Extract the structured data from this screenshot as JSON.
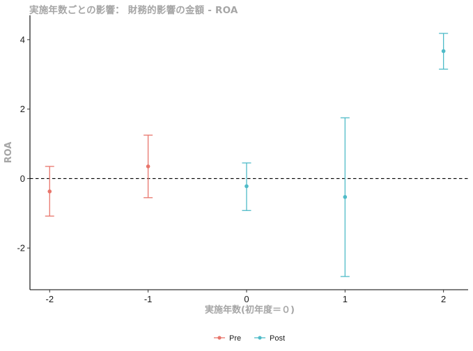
{
  "chart_data": {
    "type": "scatter",
    "title": "実施年数ごとの影響： 財務的影響の金額 - ROA",
    "xlabel": "実施年数(初年度＝０)",
    "ylabel": "ROA",
    "x_ticks": [
      "-2",
      "-1",
      "0",
      "1",
      "2"
    ],
    "y_ticks": [
      "-2",
      "0",
      "2",
      "4"
    ],
    "xlim": [
      -2.2,
      2.25
    ],
    "ylim": [
      -3.2,
      4.7
    ],
    "reference_line": {
      "y": 0,
      "style": "dashed"
    },
    "legend_position": "bottom",
    "series": [
      {
        "name": "Pre",
        "color": "#E8756B",
        "points": [
          {
            "x": -2,
            "y": -0.37,
            "lower": -1.08,
            "upper": 0.35
          },
          {
            "x": -1,
            "y": 0.35,
            "lower": -0.55,
            "upper": 1.25
          }
        ]
      },
      {
        "name": "Post",
        "color": "#4FBBC8",
        "points": [
          {
            "x": 0,
            "y": -0.22,
            "lower": -0.92,
            "upper": 0.45
          },
          {
            "x": 1,
            "y": -0.53,
            "lower": -2.82,
            "upper": 1.75
          },
          {
            "x": 2,
            "y": 3.67,
            "lower": 3.15,
            "upper": 4.18
          }
        ]
      }
    ]
  }
}
